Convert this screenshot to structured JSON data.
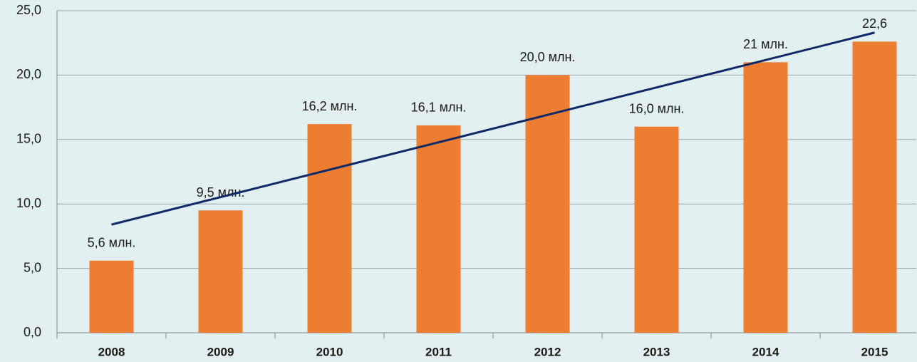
{
  "chart_data": {
    "type": "bar",
    "categories": [
      "2008",
      "2009",
      "2010",
      "2011",
      "2012",
      "2013",
      "2014",
      "2015"
    ],
    "values": [
      5.6,
      9.5,
      16.2,
      16.1,
      20.0,
      16.0,
      21,
      22.6
    ],
    "value_labels": [
      "5,6 млн.",
      "9,5 млн.",
      "16,2 млн.",
      "16,1 млн.",
      "20,0 млн.",
      "16,0 млн.",
      "21 млн.",
      "22,6"
    ],
    "color": "#ed7d31",
    "ylim": [
      0,
      25
    ],
    "yticks": [
      {
        "value": 0,
        "label": "0,0"
      },
      {
        "value": 5,
        "label": "5,0"
      },
      {
        "value": 10,
        "label": "10,0"
      },
      {
        "value": 15,
        "label": "15,0"
      },
      {
        "value": 20,
        "label": "20,0"
      },
      {
        "value": 25,
        "label": "25,0"
      }
    ],
    "grid": true,
    "trend_line": {
      "color": "#0f2a66",
      "start": 8.4,
      "end": 23.3
    }
  }
}
